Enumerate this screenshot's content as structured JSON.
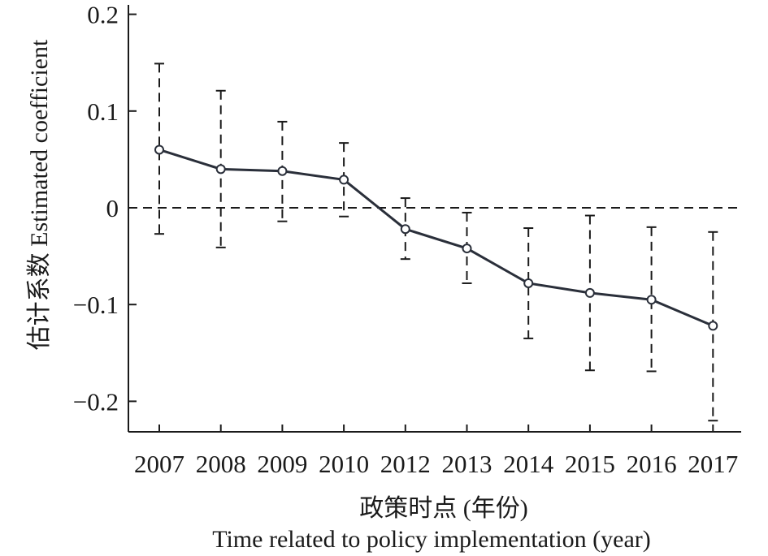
{
  "chart_data": {
    "type": "line",
    "categories": [
      "2007",
      "2008",
      "2009",
      "2010",
      "2012",
      "2013",
      "2014",
      "2015",
      "2016",
      "2017"
    ],
    "series": [
      {
        "values": [
          0.06,
          0.04,
          0.038,
          0.029,
          -0.022,
          -0.042,
          -0.078,
          -0.088,
          -0.095,
          -0.122
        ],
        "ci_upper": [
          0.149,
          0.121,
          0.089,
          0.067,
          0.01,
          -0.005,
          -0.021,
          -0.008,
          -0.02,
          -0.025
        ],
        "ci_lower": [
          -0.027,
          -0.041,
          -0.014,
          -0.009,
          -0.053,
          -0.078,
          -0.135,
          -0.168,
          -0.169,
          -0.22
        ]
      }
    ],
    "ylim": [
      -0.232,
      0.213
    ],
    "yticks": [
      0.2,
      0.1,
      0,
      -0.1,
      -0.2
    ],
    "ytick_labels": [
      "0.2",
      "0.1",
      "0",
      "−0.1",
      "−0.2"
    ],
    "ylabel": "估计系数 Estimated coefficient",
    "xlabel": "政策时点 (年份)",
    "xlabel_en": "Time related to policy implementation (year)",
    "reference_line": 0,
    "colors": {
      "line": "#2a2f3a",
      "axis": "#1a1a1a"
    },
    "grid": false,
    "legend": "none"
  }
}
